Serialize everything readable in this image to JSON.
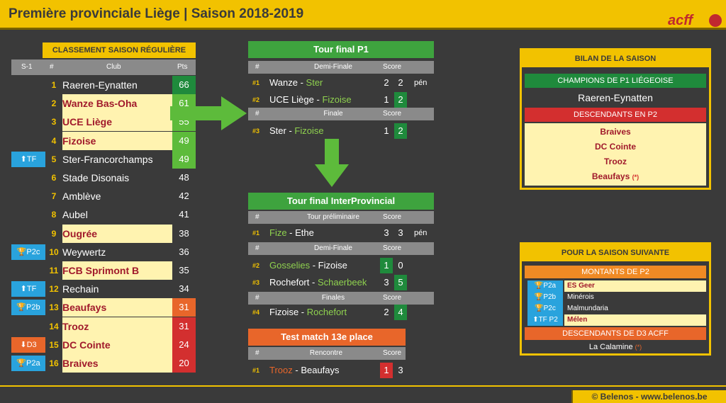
{
  "header": {
    "title": "Première provinciale Liège  | Saison 2018-2019",
    "logo": "acff"
  },
  "footer": "© Belenos - www.belenos.be",
  "standings": {
    "title": "CLASSEMENT SAISON RÉGULIÈRE",
    "cols": {
      "prev": "S-1",
      "rank": "#",
      "club": "Club",
      "pts": "Pts"
    },
    "rows": [
      {
        "badge": "",
        "rank": "1",
        "club": "Raeren-Eynatten",
        "pts": "66"
      },
      {
        "badge": "",
        "rank": "2",
        "club": "Wanze Bas-Oha",
        "pts": "61"
      },
      {
        "badge": "",
        "rank": "3",
        "club": "UCE Liège",
        "pts": "55"
      },
      {
        "badge": "",
        "rank": "4",
        "club": "Fizoise",
        "pts": "49"
      },
      {
        "badge": "⬆TF",
        "rank": "5",
        "club": "Ster-Francorchamps",
        "pts": "49"
      },
      {
        "badge": "",
        "rank": "6",
        "club": "Stade Disonais",
        "pts": "48"
      },
      {
        "badge": "",
        "rank": "7",
        "club": "Amblève",
        "pts": "42"
      },
      {
        "badge": "",
        "rank": "8",
        "club": "Aubel",
        "pts": "41"
      },
      {
        "badge": "",
        "rank": "9",
        "club": "Ougrée",
        "pts": "38"
      },
      {
        "badge": "🏆P2c",
        "rank": "10",
        "club": "Weywertz",
        "pts": "36"
      },
      {
        "badge": "",
        "rank": "11",
        "club": "FCB Sprimont B",
        "pts": "35"
      },
      {
        "badge": "⬆TF",
        "rank": "12",
        "club": "Rechain",
        "pts": "34"
      },
      {
        "badge": "🏆P2b",
        "rank": "13",
        "club": "Beaufays",
        "pts": "31"
      },
      {
        "badge": "",
        "rank": "14",
        "club": "Trooz",
        "pts": "31"
      },
      {
        "badge": "⬇D3",
        "rank": "15",
        "club": "DC Cointe",
        "pts": "24"
      },
      {
        "badge": "🏆P2a",
        "rank": "16",
        "club": "Braives",
        "pts": "20"
      }
    ]
  },
  "tour_p1": {
    "title": "Tour final P1",
    "h1": {
      "n": "#",
      "label": "Demi-Finale",
      "score": "Score"
    },
    "m1": {
      "n": "#1",
      "a": "Wanze",
      "b": "Ster",
      "s1": "2",
      "s2": "2",
      "note": "pén"
    },
    "m2": {
      "n": "#2",
      "a": "UCE Liège",
      "b": "Fizoise",
      "s1": "1",
      "s2": "2"
    },
    "h2": {
      "n": "#",
      "label": "Finale",
      "score": "Score"
    },
    "m3": {
      "n": "#3",
      "a": "Ster",
      "b": "Fizoise",
      "s1": "1",
      "s2": "2"
    }
  },
  "tour_ip": {
    "title": "Tour final InterProvincial",
    "h1": {
      "n": "#",
      "label": "Tour préliminaire",
      "score": "Score"
    },
    "m1": {
      "n": "#1",
      "a": "Fize",
      "b": "Ethe",
      "s1": "3",
      "s2": "3",
      "note": "pén"
    },
    "h2": {
      "n": "#",
      "label": "Demi-Finale",
      "score": "Score"
    },
    "m2": {
      "n": "#2",
      "a": "Gosselies",
      "b": "Fizoise",
      "s1": "1",
      "s2": "0"
    },
    "m3": {
      "n": "#3",
      "a": "Rochefort",
      "b": "Schaerbeek",
      "s1": "3",
      "s2": "5"
    },
    "h3": {
      "n": "#",
      "label": "Finales",
      "score": "Score"
    },
    "m4": {
      "n": "#4",
      "a": "Fizoise",
      "b": "Rochefort",
      "s1": "2",
      "s2": "4"
    }
  },
  "test_match": {
    "title": "Test match 13e place",
    "h1": {
      "n": "#",
      "label": "Rencontre",
      "score": "Score"
    },
    "m1": {
      "n": "#1",
      "a": "Trooz",
      "b": "Beaufays",
      "s1": "1",
      "s2": "3"
    }
  },
  "bilan": {
    "title": "BILAN DE LA SAISON",
    "champ_label": "CHAMPIONS DE P1 LIÉGEOISE",
    "champ": "Raeren-Eynatten",
    "desc_label": "DESCENDANTS EN P2",
    "desc": [
      "Braives",
      "DC Cointe",
      "Trooz",
      "Beaufays"
    ],
    "mark": "(*)"
  },
  "next": {
    "title": "POUR LA SAISON SUIVANTE",
    "up_label": "MONTANTS DE P2",
    "up": [
      {
        "b": "🏆P2a",
        "c": "ES Geer"
      },
      {
        "b": "🏆P2b",
        "c": "Minérois"
      },
      {
        "b": "🏆P2c",
        "c": "Malmundaria"
      },
      {
        "b": "⬆TF P2",
        "c": "Mélen"
      }
    ],
    "down_label": "DESCENDANTS DE D3 ACFF",
    "down": "La Calamine",
    "mark": "(*)"
  }
}
